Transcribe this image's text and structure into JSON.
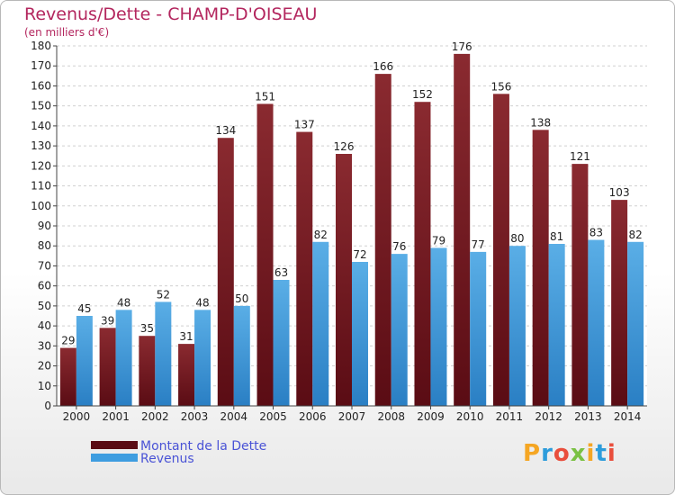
{
  "chart_data": {
    "type": "bar",
    "title": "Revenus/Dette - CHAMP-D'OISEAU",
    "subtitle": "(en milliers d'€)",
    "categories": [
      "2000",
      "2001",
      "2002",
      "2003",
      "2004",
      "2005",
      "2006",
      "2007",
      "2008",
      "2009",
      "2010",
      "2011",
      "2012",
      "2013",
      "2014"
    ],
    "series": [
      {
        "name": "Montant de la Dette",
        "color": "#7a1c24",
        "values": [
          29,
          39,
          35,
          31,
          134,
          151,
          137,
          126,
          166,
          152,
          176,
          156,
          138,
          121,
          103
        ]
      },
      {
        "name": "Revenus",
        "color": "#3e9de0",
        "values": [
          45,
          48,
          52,
          48,
          50,
          63,
          82,
          72,
          76,
          79,
          77,
          80,
          81,
          83,
          82
        ]
      }
    ],
    "ylim": [
      0,
      180
    ],
    "yticks": [
      0,
      10,
      20,
      30,
      40,
      50,
      60,
      70,
      80,
      90,
      100,
      110,
      120,
      130,
      140,
      150,
      160,
      170,
      180
    ],
    "grid": true,
    "legend": "bottom-left"
  },
  "logo": {
    "text": "Proxiti",
    "colors": [
      "#f5a623",
      "#2d9cdb",
      "#e94e3c",
      "#7ac143",
      "#f5a623",
      "#2d9cdb",
      "#e94e3c"
    ]
  }
}
